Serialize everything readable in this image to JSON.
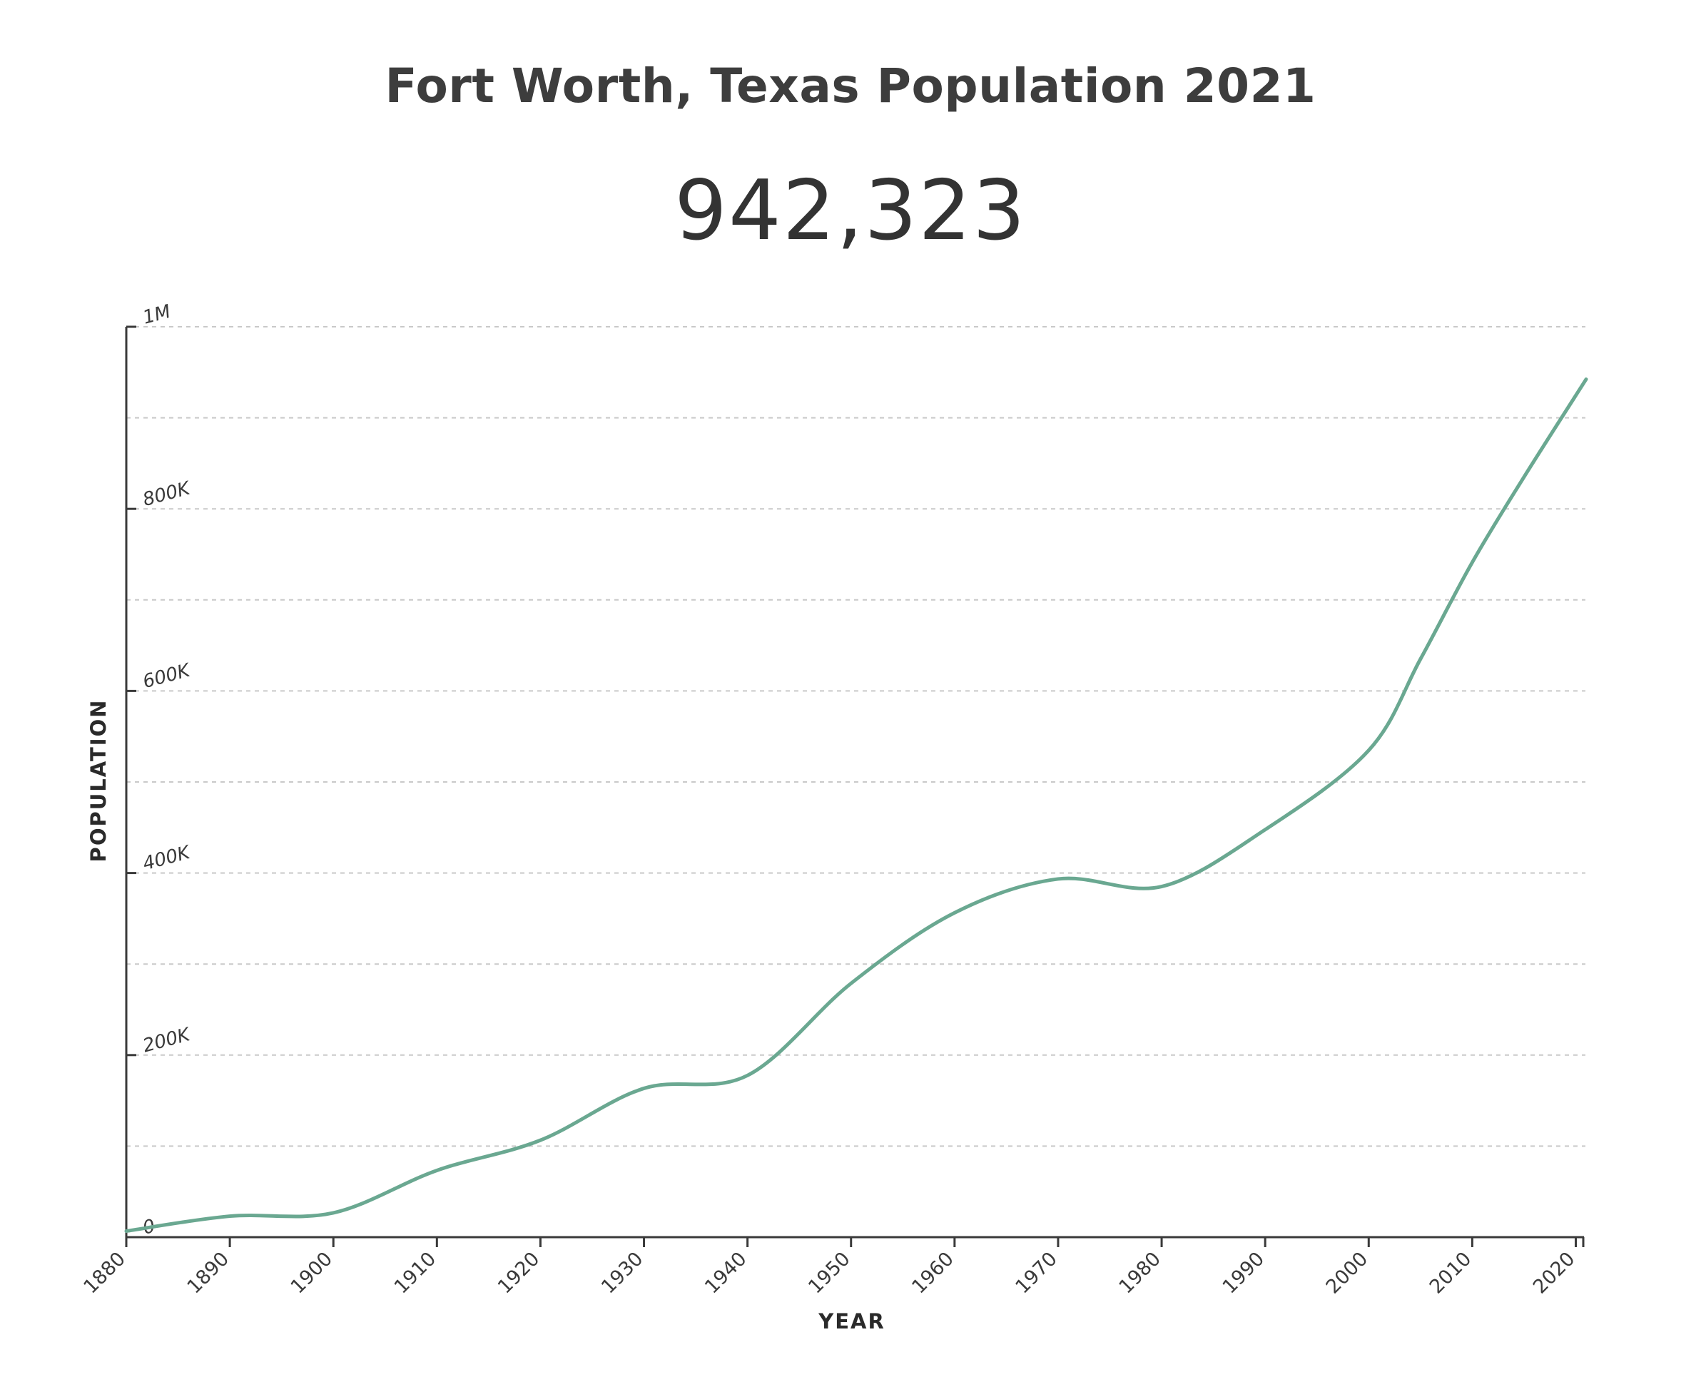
{
  "header": {
    "title": "Fort Worth, Texas Population 2021",
    "population_2021": "942,323"
  },
  "chart_data": {
    "type": "line",
    "xlabel": "YEAR",
    "ylabel": "POPULATION",
    "xlim": [
      1880,
      2021
    ],
    "ylim": [
      0,
      1000000
    ],
    "x_ticks": [
      1880,
      1890,
      1900,
      1910,
      1920,
      1930,
      1940,
      1950,
      1960,
      1970,
      1980,
      1990,
      2000,
      2010,
      2020
    ],
    "x_tick_labels": [
      "1880",
      "1890",
      "1900",
      "1910",
      "1920",
      "1930",
      "1940",
      "1950",
      "1960",
      "1970",
      "1980",
      "1990",
      "2000",
      "2010",
      "2020"
    ],
    "y_ticks": [
      0,
      200000,
      400000,
      600000,
      800000,
      1000000
    ],
    "y_tick_labels": [
      "0",
      "200K",
      "400K",
      "600K",
      "800K",
      "1M"
    ],
    "y_gridlines": [
      100000,
      200000,
      300000,
      400000,
      500000,
      600000,
      700000,
      800000,
      900000,
      1000000
    ],
    "grid": true,
    "line_color": "#6aa891",
    "series": [
      {
        "x": [
          1880,
          1890,
          1900,
          1910,
          1920,
          1930,
          1940,
          1950,
          1960,
          1970,
          1980,
          1990,
          2000,
          2005,
          2010,
          2015,
          2021
        ],
        "values": [
          6663,
          23076,
          26688,
          73312,
          106482,
          163447,
          177662,
          278778,
          356268,
          393455,
          385164,
          447619,
          534694,
          635000,
          741206,
          835000,
          942323
        ]
      }
    ]
  }
}
